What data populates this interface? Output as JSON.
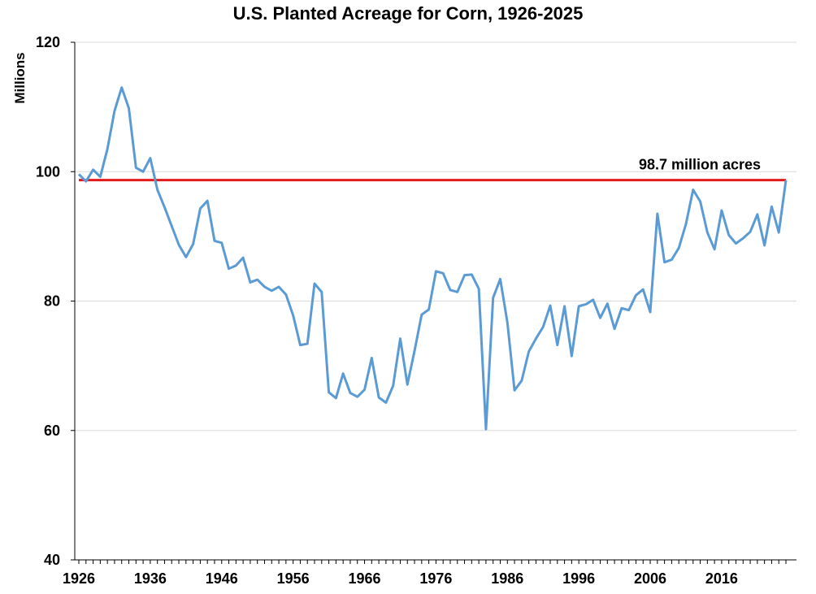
{
  "chart_data": {
    "type": "line",
    "title": "U.S. Planted Acreage for Corn, 1926-2025",
    "xlabel": "",
    "ylabel": "Millions",
    "ylim": [
      40,
      120
    ],
    "yticks": [
      40,
      60,
      80,
      100,
      120
    ],
    "xlim": [
      1926,
      2025
    ],
    "xticks": [
      1926,
      1936,
      1946,
      1956,
      1966,
      1976,
      1986,
      1996,
      2006,
      2016
    ],
    "grid": true,
    "x": [
      1926,
      1927,
      1928,
      1929,
      1930,
      1931,
      1932,
      1933,
      1934,
      1935,
      1936,
      1937,
      1938,
      1939,
      1940,
      1941,
      1942,
      1943,
      1944,
      1945,
      1946,
      1947,
      1948,
      1949,
      1950,
      1951,
      1952,
      1953,
      1954,
      1955,
      1956,
      1957,
      1958,
      1959,
      1960,
      1961,
      1962,
      1963,
      1964,
      1965,
      1966,
      1967,
      1968,
      1969,
      1970,
      1971,
      1972,
      1973,
      1974,
      1975,
      1976,
      1977,
      1978,
      1979,
      1980,
      1981,
      1982,
      1983,
      1984,
      1985,
      1986,
      1987,
      1988,
      1989,
      1990,
      1991,
      1992,
      1993,
      1994,
      1995,
      1996,
      1997,
      1998,
      1999,
      2000,
      2001,
      2002,
      2003,
      2004,
      2005,
      2006,
      2007,
      2008,
      2009,
      2010,
      2011,
      2012,
      2013,
      2014,
      2015,
      2016,
      2017,
      2018,
      2019,
      2020,
      2021,
      2022,
      2023,
      2024,
      2025
    ],
    "series": [
      {
        "name": "Planted acreage",
        "color": "#5b9bd5",
        "values": [
          99.6,
          98.5,
          100.3,
          99.2,
          103.5,
          109.4,
          113.0,
          109.8,
          100.6,
          100.0,
          102.1,
          97.2,
          94.5,
          91.6,
          88.7,
          86.8,
          88.8,
          94.3,
          95.5,
          89.3,
          89.0,
          85.0,
          85.5,
          86.7,
          82.9,
          83.3,
          82.2,
          81.6,
          82.2,
          81.0,
          77.8,
          73.2,
          73.4,
          82.7,
          81.4,
          65.9,
          65.0,
          68.8,
          65.8,
          65.2,
          66.3,
          71.2,
          65.1,
          64.3,
          66.9,
          74.2,
          67.1,
          72.3,
          77.9,
          78.7,
          84.6,
          84.3,
          81.7,
          81.4,
          84.0,
          84.1,
          81.9,
          60.2,
          80.5,
          83.4,
          76.7,
          66.2,
          67.7,
          72.2,
          74.2,
          76.0,
          79.3,
          73.2,
          79.2,
          71.5,
          79.2,
          79.5,
          80.2,
          77.4,
          79.6,
          75.7,
          78.9,
          78.6,
          80.9,
          81.8,
          78.3,
          93.5,
          86.0,
          86.4,
          88.2,
          91.9,
          97.2,
          95.4,
          90.6,
          88.0,
          94.0,
          90.2,
          88.9,
          89.7,
          90.7,
          93.4,
          88.6,
          94.6,
          90.6,
          98.7
        ]
      }
    ],
    "reference_line": {
      "value": 98.7,
      "label": "98.7 million acres",
      "color": "#e31a1c"
    }
  }
}
